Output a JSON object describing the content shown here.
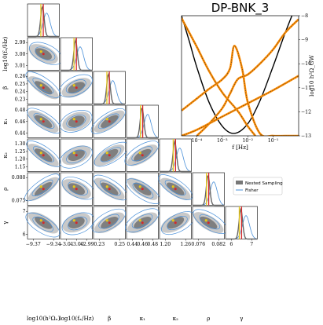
{
  "chart_data": [
    {
      "type": "corner",
      "title": "",
      "parameters": [
        {
          "key": "logOmega",
          "label": "log10(h²Ωₓ)",
          "ticks": [
            "−9.37",
            "−9.34"
          ],
          "fisher_mean": -9.355,
          "nested_mean": -9.352
        },
        {
          "key": "logf",
          "label": "log10(fₓ/Hz)",
          "ticks": [
            "−3.01",
            "−3.00",
            "−2.99"
          ],
          "fisher_mean": -2.994,
          "nested_mean": -2.995
        },
        {
          "key": "beta",
          "label": "β",
          "ticks": [
            "0.23",
            "0.25"
          ],
          "fisher_mean": 0.235,
          "nested_mean": 0.238
        },
        {
          "key": "kappa1",
          "label": "κ₁",
          "ticks": [
            "0.44",
            "0.46",
            "0.48"
          ],
          "fisher_mean": 0.457,
          "nested_mean": 0.458
        },
        {
          "key": "kappa2",
          "label": "κ₂",
          "ticks": [
            "1.20",
            "1.26"
          ],
          "fisher_mean": 1.218,
          "nested_mean": 1.222
        },
        {
          "key": "rho",
          "label": "ρ",
          "ticks": [
            "0.076",
            "0.082"
          ],
          "fisher_mean": 0.0785,
          "nested_mean": 0.0789
        },
        {
          "key": "gamma",
          "label": "γ",
          "ticks": [
            "6",
            "7"
          ],
          "fisher_mean": 6.55,
          "nested_mean": 6.62
        }
      ],
      "row_ticks": [
        [],
        [
          "2.99",
          "3.00",
          "3.01"
        ],
        [
          "0.26",
          "0.25",
          "0.24",
          "0.23"
        ],
        [
          "0.48",
          "0.46",
          "0.44"
        ],
        [
          "1.30",
          "1.25",
          "1.20",
          "1.15"
        ],
        [
          "0.080",
          "0.075"
        ],
        [
          "7",
          "6"
        ]
      ],
      "legend": {
        "placement": "right",
        "entries": [
          {
            "name": "Nested Sampling",
            "color": "#777777"
          },
          {
            "name": "Fisher",
            "color": "#5a9fd4"
          }
        ]
      },
      "colors": {
        "nested": "#666666",
        "fisher": "#4a90d9",
        "truth": "#d62728",
        "reference": "#e6c619"
      }
    },
    {
      "type": "line",
      "title": "DP-BNK_3",
      "xlabel": "f [Hz]",
      "ylabel": "log10 h²Ω_GW",
      "xscale": "log",
      "xticks": [
        "10⁻⁴",
        "10⁻³",
        "10⁻²",
        "10⁻¹"
      ],
      "yticks": [
        -8,
        -9,
        -10,
        -11,
        -12,
        -13
      ],
      "xlim": [
        2.5e-05,
        1.0
      ],
      "ylim": [
        -13,
        -8
      ],
      "series": [
        {
          "name": "",
          "color": "#000000",
          "x": [
            2.5e-05,
            5e-05,
            0.0001,
            0.0003,
            0.001,
            0.003,
            0.01,
            0.03,
            0.1,
            0.3,
            1.0
          ],
          "y": [
            -8.0,
            -9.05,
            -10.15,
            -11.6,
            -12.6,
            -12.9,
            -12.5,
            -11.55,
            -10.1,
            -8.7,
            -7.3
          ]
        },
        {
          "name": "",
          "color": "#ff8c00",
          "x": [
            2.5e-05,
            0.0001,
            0.0003,
            0.001,
            0.002,
            0.003,
            0.006,
            0.01,
            0.03,
            0.1,
            0.3,
            1.0
          ],
          "y": [
            -11.95,
            -11.45,
            -11.05,
            -10.65,
            -10.2,
            -9.25,
            -10.2,
            -11.6,
            -12.9,
            -13.0,
            -13.0,
            -13.0
          ]
        },
        {
          "name": "",
          "color": "#ff8c00",
          "x": [
            2.5e-05,
            5e-05,
            0.0001,
            0.0003,
            0.001,
            0.003,
            0.005,
            0.01,
            0.02
          ],
          "y": [
            -8.1,
            -8.7,
            -9.3,
            -10.3,
            -11.2,
            -11.8,
            -12.1,
            -12.6,
            -13.0
          ]
        },
        {
          "name": "",
          "color": "#ff8c00",
          "x": [
            0.0001,
            0.0003,
            0.001,
            0.002,
            0.004,
            0.01,
            0.03,
            0.1,
            0.3,
            1.0
          ],
          "y": [
            -13.0,
            -12.5,
            -11.85,
            -11.25,
            -10.65,
            -10.45,
            -10.0,
            -9.4,
            -8.7,
            -8.15
          ]
        },
        {
          "name": "",
          "color": "#ff8c00",
          "x": [
            2.5e-05,
            0.0001,
            0.001,
            0.01,
            0.1,
            1.0
          ],
          "y": [
            -13.0,
            -12.75,
            -12.2,
            -11.65,
            -11.1,
            -10.5
          ]
        }
      ]
    }
  ]
}
